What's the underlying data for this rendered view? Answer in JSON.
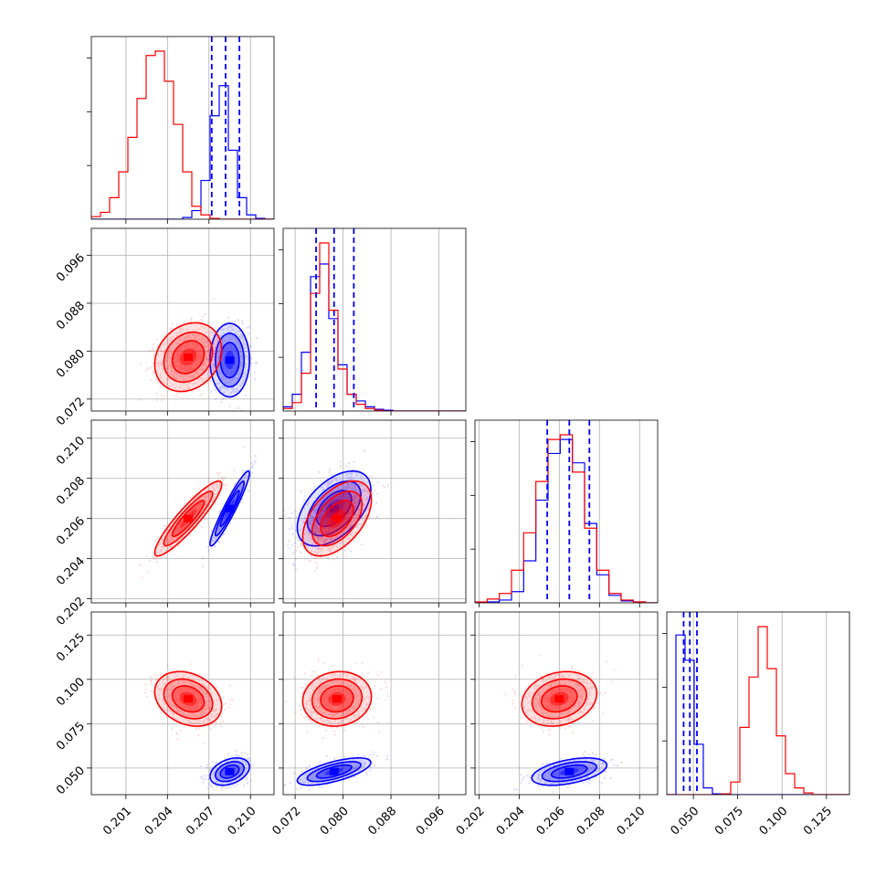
{
  "chart_data": {
    "type": "corner",
    "grid": true,
    "legend": "none",
    "colors": {
      "series_a": "#0000ff",
      "series_b": "#ff0000",
      "quantile_lines": "#0000ff"
    },
    "params": [
      {
        "range": [
          0.1985,
          0.2117
        ],
        "ticks": [
          0.201,
          0.204,
          0.207,
          0.21
        ],
        "tick_labels": [
          "0.201",
          "0.204",
          "0.207",
          "0.210"
        ]
      },
      {
        "range": [
          0.07,
          0.1005
        ],
        "ticks": [
          0.072,
          0.08,
          0.088,
          0.096
        ],
        "tick_labels": [
          "0.072",
          "0.080",
          "0.088",
          "0.096"
        ]
      },
      {
        "range": [
          0.2018,
          0.2109
        ],
        "ticks": [
          0.202,
          0.204,
          0.206,
          0.208,
          0.21
        ],
        "tick_labels": [
          "0.202",
          "0.204",
          "0.206",
          "0.208",
          "0.210"
        ]
      },
      {
        "range": [
          0.035,
          0.138
        ],
        "ticks": [
          0.05,
          0.075,
          0.1,
          0.125
        ],
        "tick_labels": [
          "0.050",
          "0.075",
          "0.100",
          "0.125"
        ]
      }
    ],
    "series": [
      {
        "color": "#0000ff",
        "mean": [
          0.2085,
          0.0785,
          0.2065,
          0.048
        ],
        "sd": [
          0.00065,
          0.0028,
          0.00085,
          0.0035
        ],
        "quantiles": [
          [
            0.2072,
            0.2082,
            0.2092
          ],
          [
            0.0755,
            0.0785,
            0.0818
          ],
          [
            0.2054,
            0.2065,
            0.2075
          ],
          [
            0.0445,
            0.048,
            0.052
          ]
        ]
      },
      {
        "color": "#ff0000",
        "mean": [
          0.2055,
          0.079,
          0.206,
          0.089
        ],
        "sd": [
          0.0011,
          0.0026,
          0.00085,
          0.007
        ],
        "quantiles": []
      }
    ],
    "histograms": [
      {
        "bins": [
          0.1985,
          0.2117
        ],
        "blue": [
          0,
          0,
          0,
          0,
          0,
          0,
          0,
          0,
          0,
          0,
          2,
          10,
          45,
          120,
          155,
          80,
          25,
          5,
          1,
          0
        ],
        "red": [
          3,
          8,
          25,
          55,
          95,
          140,
          190,
          195,
          160,
          110,
          55,
          15,
          5,
          1,
          0,
          0,
          0,
          0,
          0,
          0
        ]
      },
      {
        "bins": [
          0.07,
          0.1005
        ],
        "blue": [
          5,
          20,
          70,
          160,
          175,
          110,
          55,
          20,
          12,
          5,
          2,
          1,
          0,
          0,
          0,
          0,
          0,
          0,
          0,
          0
        ],
        "red": [
          3,
          10,
          45,
          140,
          200,
          120,
          50,
          20,
          8,
          3,
          1,
          0,
          0,
          0,
          0,
          0,
          0,
          0,
          0,
          0
        ]
      },
      {
        "bins": [
          0.2018,
          0.2109
        ],
        "blue": [
          0,
          1,
          3,
          12,
          45,
          110,
          160,
          175,
          150,
          85,
          30,
          8,
          2,
          1,
          0
        ],
        "red": [
          1,
          4,
          10,
          35,
          75,
          130,
          175,
          180,
          140,
          80,
          35,
          10,
          3,
          1,
          0
        ]
      },
      {
        "bins": [
          0.035,
          0.138
        ],
        "blue": [
          0,
          190,
          160,
          60,
          8,
          1,
          0,
          0,
          0,
          0,
          0,
          0,
          0,
          0,
          0,
          0,
          0,
          0,
          0,
          0
        ],
        "red": [
          0,
          0,
          0,
          0,
          0,
          0,
          1,
          15,
          80,
          140,
          200,
          150,
          70,
          25,
          8,
          2,
          0,
          0,
          0,
          0
        ]
      }
    ],
    "pairs": [
      {
        "row": 1,
        "col": 0,
        "blue": {
          "mean": [
            0.2085,
            0.0785
          ],
          "cov": [
            [
              4.2e-07,
              0.0
            ],
            [
              0.0,
              7.8e-06
            ]
          ]
        },
        "red": {
          "mean": [
            0.2055,
            0.079
          ],
          "cov": [
            [
              1.21e-06,
              6e-07
            ],
            [
              6e-07,
              6.8e-06
            ]
          ]
        }
      },
      {
        "row": 2,
        "col": 0,
        "blue": {
          "mean": [
            0.2085,
            0.2065
          ],
          "cov": [
            [
              4.2e-07,
              5.2e-07
            ],
            [
              5.2e-07,
              7.2e-07
            ]
          ]
        },
        "red": {
          "mean": [
            0.2055,
            0.206
          ],
          "cov": [
            [
              1.21e-06,
              8.5e-07
            ],
            [
              8.5e-07,
              7.2e-07
            ]
          ]
        }
      },
      {
        "row": 2,
        "col": 1,
        "blue": {
          "mean": [
            0.0785,
            0.2065
          ],
          "cov": [
            [
              7.8e-06,
              1.2e-06
            ],
            [
              1.2e-06,
              7.2e-07
            ]
          ]
        },
        "red": {
          "mean": [
            0.079,
            0.206
          ],
          "cov": [
            [
              6.8e-06,
              1.1e-06
            ],
            [
              1.1e-06,
              7.2e-07
            ]
          ]
        }
      },
      {
        "row": 3,
        "col": 0,
        "blue": {
          "mean": [
            0.2085,
            0.048
          ],
          "cov": [
            [
              4.2e-07,
              8e-07
            ],
            [
              8e-07,
              1.22e-05
            ]
          ]
        },
        "red": {
          "mean": [
            0.2055,
            0.089
          ],
          "cov": [
            [
              1.21e-06,
              -2e-06
            ],
            [
              -2e-06,
              4.9e-05
            ]
          ]
        }
      },
      {
        "row": 3,
        "col": 1,
        "blue": {
          "mean": [
            0.0785,
            0.048
          ],
          "cov": [
            [
              7.8e-06,
              6.5e-06
            ],
            [
              6.5e-06,
              1.22e-05
            ]
          ]
        },
        "red": {
          "mean": [
            0.079,
            0.089
          ],
          "cov": [
            [
              6.8e-06,
              1.5e-06
            ],
            [
              1.5e-06,
              4.9e-05
            ]
          ]
        }
      },
      {
        "row": 3,
        "col": 2,
        "blue": {
          "mean": [
            0.2065,
            0.048
          ],
          "cov": [
            [
              7.2e-07,
              1.4e-06
            ],
            [
              1.4e-06,
              1.22e-05
            ]
          ]
        },
        "red": {
          "mean": [
            0.206,
            0.089
          ],
          "cov": [
            [
              7.2e-07,
              1.2e-06
            ],
            [
              1.2e-06,
              4.9e-05
            ]
          ]
        }
      }
    ]
  }
}
